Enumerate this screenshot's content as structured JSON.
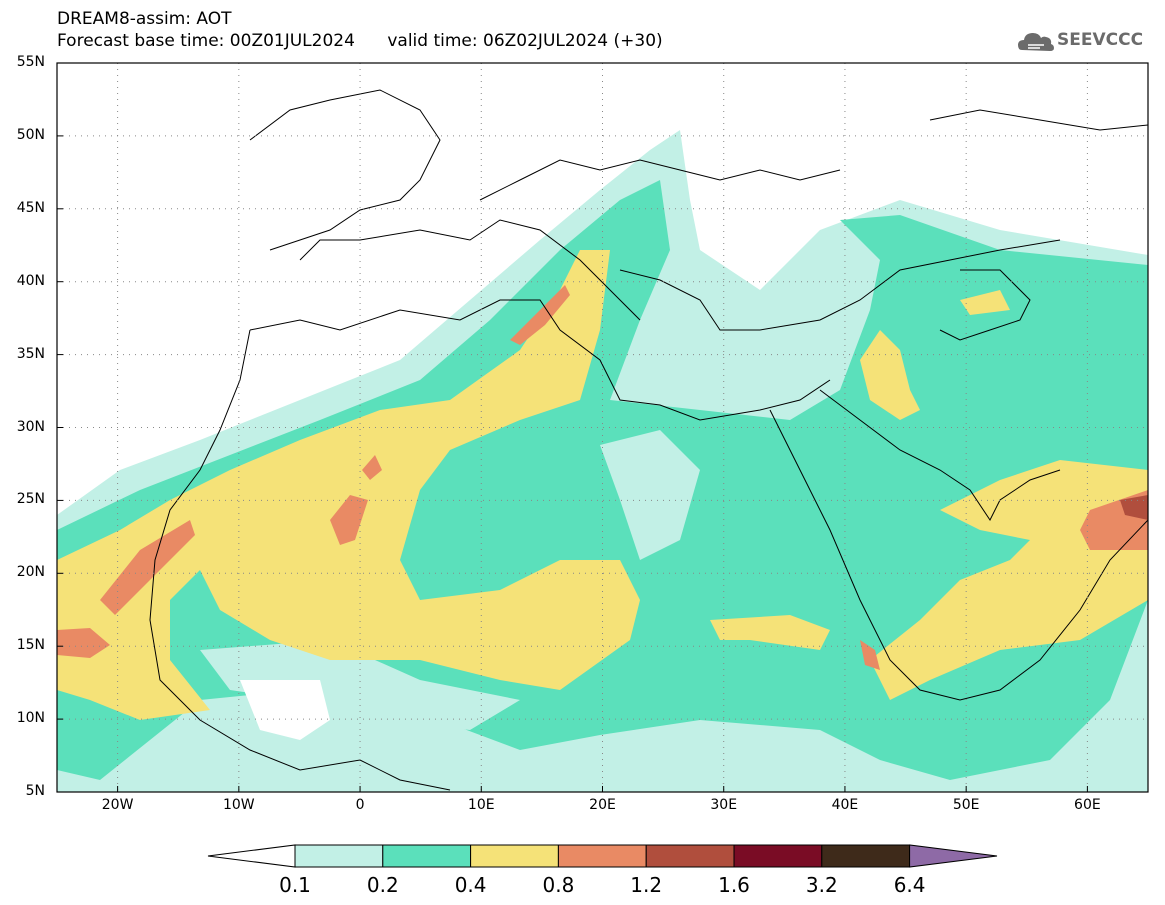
{
  "header": {
    "title_line1": "DREAM8-assim: AOT",
    "title_line2_base": "Forecast base time: 00Z01JUL2024",
    "title_line2_valid": "valid time: 06Z02JUL2024 (+30)"
  },
  "logo": {
    "text": "SEEVCCC",
    "icon": "cloud-icon"
  },
  "map": {
    "lat_labels": [
      "55N",
      "50N",
      "45N",
      "40N",
      "35N",
      "30N",
      "25N",
      "20N",
      "15N",
      "10N",
      "5N"
    ],
    "lon_labels": [
      "20W",
      "10W",
      "0",
      "10E",
      "20E",
      "30E",
      "40E",
      "50E",
      "60E"
    ],
    "extent": {
      "lon_min": -25,
      "lon_max": 65,
      "lat_min": 5,
      "lat_max": 55
    }
  },
  "colorbar": {
    "levels": [
      "0.1",
      "0.2",
      "0.4",
      "0.8",
      "1.2",
      "1.6",
      "3.2",
      "6.4"
    ],
    "colors": [
      "#ffffff",
      "#c2f0e6",
      "#5be0bb",
      "#f5e278",
      "#e98a64",
      "#b04e3d",
      "#7a0c25",
      "#3e2a1a",
      "#8e6aa6"
    ]
  },
  "fields": {
    "color_low": "#c2f0e6",
    "color_med": "#5be0bb",
    "color_high": "#f5e278",
    "color_vhigh": "#e98a64",
    "color_ext": "#b04e3d"
  }
}
